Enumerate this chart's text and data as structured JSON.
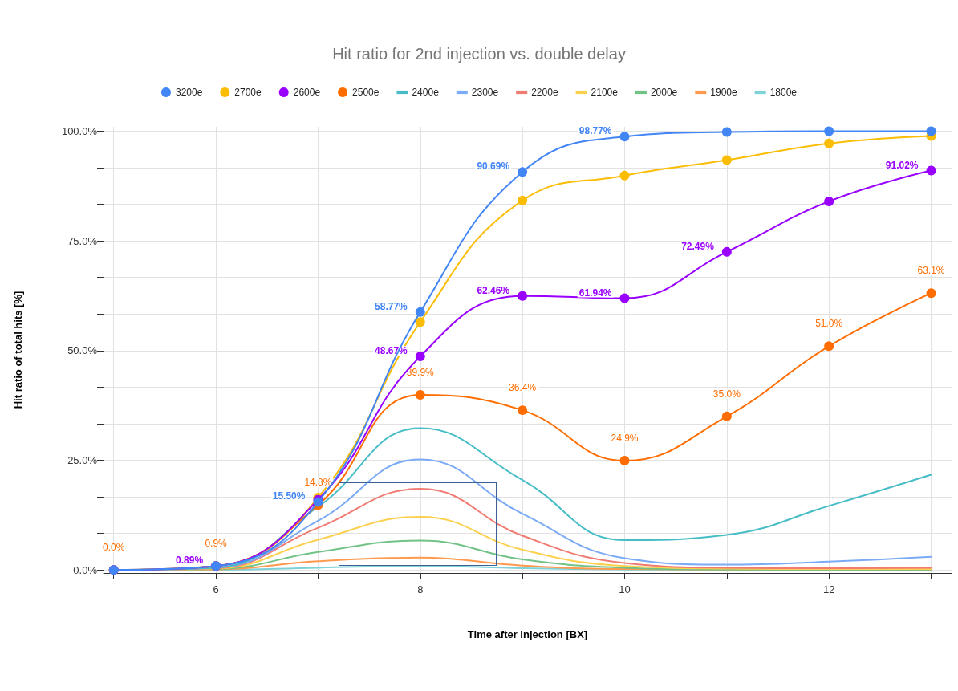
{
  "chart_data": {
    "type": "line",
    "title": "Hit ratio for 2nd injection vs. double delay",
    "xlabel": "Time after injection [BX]",
    "ylabel": "Hit ratio of total hits [%]",
    "x": [
      5,
      6,
      7,
      8,
      9,
      10,
      11,
      12,
      13
    ],
    "xlim": [
      4.9,
      13.2
    ],
    "xticks": [
      {
        "value": 5,
        "label": null
      },
      6,
      {
        "value": 7,
        "label": null
      },
      8,
      {
        "value": 9,
        "label": null
      },
      10,
      {
        "value": 11,
        "label": null
      },
      12,
      {
        "value": 13,
        "label": null
      }
    ],
    "ylim": [
      -0.7,
      101
    ],
    "yticks": [
      {
        "value": 0,
        "label": "0.0%"
      },
      {
        "value": 8.333,
        "label": null
      },
      {
        "value": 16.667,
        "label": null
      },
      {
        "value": 25,
        "label": "25.0%"
      },
      {
        "value": 33.333,
        "label": null
      },
      {
        "value": 41.667,
        "label": null
      },
      {
        "value": 50,
        "label": "50.0%"
      },
      {
        "value": 58.333,
        "label": null
      },
      {
        "value": 66.667,
        "label": null
      },
      {
        "value": 75,
        "label": "75.0%"
      },
      {
        "value": 83.333,
        "label": null
      },
      {
        "value": 91.667,
        "label": null
      },
      {
        "value": 100,
        "label": "100.0%"
      }
    ],
    "grid": true,
    "legend": "top",
    "series": [
      {
        "name": "3200e",
        "color": "#4285f4",
        "marker": "circle",
        "values": [
          0,
          0.9,
          15.5,
          58.77,
          90.69,
          98.77,
          99.8,
          100,
          100
        ],
        "value_labels": [
          null,
          null,
          "15.50%",
          "58.77%",
          "90.69%",
          "98.77%",
          null,
          null,
          null
        ]
      },
      {
        "name": "2700e",
        "color": "#fbbc04",
        "marker": "circle",
        "values": [
          0,
          0.9,
          16.5,
          56.5,
          84.2,
          89.9,
          93.4,
          97.2,
          98.9
        ]
      },
      {
        "name": "2600e",
        "color": "#9900ff",
        "marker": "circle",
        "values": [
          0,
          0.89,
          16.0,
          48.67,
          62.46,
          61.94,
          72.49,
          84.0,
          91.02
        ],
        "value_labels": [
          null,
          "0.89%",
          null,
          "48.67%",
          "62.46%",
          "61.94%",
          "72.49%",
          null,
          "91.02%"
        ]
      },
      {
        "name": "2500e",
        "color": "#ff6d01",
        "marker": "circle",
        "values": [
          0.0,
          0.9,
          14.8,
          39.9,
          36.4,
          24.9,
          35.0,
          51.0,
          63.1
        ],
        "value_labels": [
          "0.0%",
          "0.9%",
          "14.8%",
          "39.9%",
          "36.4%",
          "24.9%",
          "35.0%",
          "51.0%",
          "63.1%"
        ]
      },
      {
        "name": "2400e",
        "color": "#46bdc6",
        "marker": "none",
        "values": [
          0,
          0.5,
          14.4,
          32.3,
          20.5,
          6.8,
          8.0,
          14.6,
          21.7
        ]
      },
      {
        "name": "2300e",
        "color": "#7baaf7",
        "marker": "none",
        "values": [
          0,
          0.5,
          11.2,
          25.2,
          12.8,
          2.7,
          1.2,
          1.9,
          3.0
        ]
      },
      {
        "name": "2200e",
        "color": "#f07b72",
        "marker": "none",
        "values": [
          0,
          0.4,
          9.6,
          18.5,
          7.8,
          1.6,
          0.5,
          0.4,
          0.5
        ]
      },
      {
        "name": "2100e",
        "color": "#fcd04f",
        "marker": "none",
        "values": [
          0,
          0.3,
          6.9,
          12.1,
          4.6,
          0.9,
          0.3,
          0.2,
          0.2
        ]
      },
      {
        "name": "2000e",
        "color": "#71c287",
        "marker": "none",
        "values": [
          0,
          0.2,
          4.1,
          6.7,
          2.4,
          0.5,
          0.1,
          0.1,
          0.1
        ]
      },
      {
        "name": "1900e",
        "color": "#ff994d",
        "marker": "none",
        "values": [
          0,
          0.1,
          2.0,
          2.8,
          1.0,
          0.2,
          0.1,
          0.1,
          0.1
        ]
      },
      {
        "name": "1800e",
        "color": "#7ed1d7",
        "marker": "none",
        "values": [
          0,
          0,
          0.5,
          0.9,
          0.4,
          0.1,
          0,
          0,
          0
        ]
      }
    ]
  }
}
